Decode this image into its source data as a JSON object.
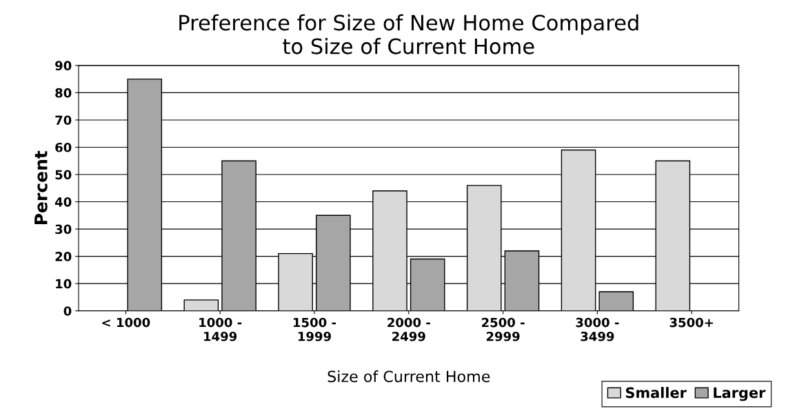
{
  "chart_data": {
    "type": "bar",
    "title": "Preference for Size of New Home Compared\nto Size of Current Home",
    "xlabel": "Size of Current Home",
    "ylabel": "Percent",
    "categories": [
      "< 1000",
      "1000 -\n1499",
      "1500 -\n1999",
      "2000 -\n2499",
      "2500 -\n2999",
      "3000 -\n3499",
      "3500+"
    ],
    "series": [
      {
        "name": "Smaller",
        "color": "#d9d9d9",
        "values": [
          null,
          4,
          21,
          44,
          46,
          59,
          55
        ]
      },
      {
        "name": "Larger",
        "color": "#a6a6a6",
        "values": [
          85,
          55,
          35,
          19,
          22,
          7,
          null
        ]
      }
    ],
    "ylim": [
      0,
      90
    ],
    "yticks": [
      0,
      10,
      20,
      30,
      40,
      50,
      60,
      70,
      80,
      90
    ],
    "grid": "y",
    "legend": "bottom right"
  }
}
